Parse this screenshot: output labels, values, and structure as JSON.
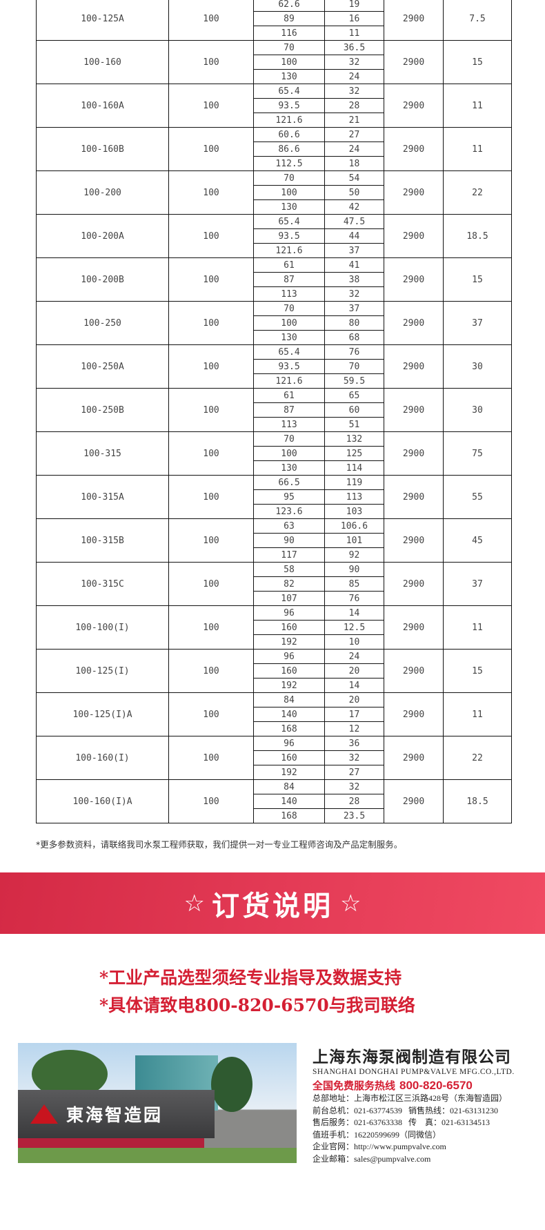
{
  "table": {
    "rows": [
      {
        "model": "100-125A",
        "inlet": "100",
        "flow": [
          "62.6",
          "89",
          "116"
        ],
        "head": [
          "19",
          "16",
          "11"
        ],
        "speed": "2900",
        "power": "7.5"
      },
      {
        "model": "100-160",
        "inlet": "100",
        "flow": [
          "70",
          "100",
          "130"
        ],
        "head": [
          "36.5",
          "32",
          "24"
        ],
        "speed": "2900",
        "power": "15"
      },
      {
        "model": "100-160A",
        "inlet": "100",
        "flow": [
          "65.4",
          "93.5",
          "121.6"
        ],
        "head": [
          "32",
          "28",
          "21"
        ],
        "speed": "2900",
        "power": "11"
      },
      {
        "model": "100-160B",
        "inlet": "100",
        "flow": [
          "60.6",
          "86.6",
          "112.5"
        ],
        "head": [
          "27",
          "24",
          "18"
        ],
        "speed": "2900",
        "power": "11"
      },
      {
        "model": "100-200",
        "inlet": "100",
        "flow": [
          "70",
          "100",
          "130"
        ],
        "head": [
          "54",
          "50",
          "42"
        ],
        "speed": "2900",
        "power": "22"
      },
      {
        "model": "100-200A",
        "inlet": "100",
        "flow": [
          "65.4",
          "93.5",
          "121.6"
        ],
        "head": [
          "47.5",
          "44",
          "37"
        ],
        "speed": "2900",
        "power": "18.5"
      },
      {
        "model": "100-200B",
        "inlet": "100",
        "flow": [
          "61",
          "87",
          "113"
        ],
        "head": [
          "41",
          "38",
          "32"
        ],
        "speed": "2900",
        "power": "15"
      },
      {
        "model": "100-250",
        "inlet": "100",
        "flow": [
          "70",
          "100",
          "130"
        ],
        "head": [
          "37",
          "80",
          "68"
        ],
        "speed": "2900",
        "power": "37"
      },
      {
        "model": "100-250A",
        "inlet": "100",
        "flow": [
          "65.4",
          "93.5",
          "121.6"
        ],
        "head": [
          "76",
          "70",
          "59.5"
        ],
        "speed": "2900",
        "power": "30"
      },
      {
        "model": "100-250B",
        "inlet": "100",
        "flow": [
          "61",
          "87",
          "113"
        ],
        "head": [
          "65",
          "60",
          "51"
        ],
        "speed": "2900",
        "power": "30"
      },
      {
        "model": "100-315",
        "inlet": "100",
        "flow": [
          "70",
          "100",
          "130"
        ],
        "head": [
          "132",
          "125",
          "114"
        ],
        "speed": "2900",
        "power": "75"
      },
      {
        "model": "100-315A",
        "inlet": "100",
        "flow": [
          "66.5",
          "95",
          "123.6"
        ],
        "head": [
          "119",
          "113",
          "103"
        ],
        "speed": "2900",
        "power": "55"
      },
      {
        "model": "100-315B",
        "inlet": "100",
        "flow": [
          "63",
          "90",
          "117"
        ],
        "head": [
          "106.6",
          "101",
          "92"
        ],
        "speed": "2900",
        "power": "45"
      },
      {
        "model": "100-315C",
        "inlet": "100",
        "flow": [
          "58",
          "82",
          "107"
        ],
        "head": [
          "90",
          "85",
          "76"
        ],
        "speed": "2900",
        "power": "37"
      },
      {
        "model": "100-100(I)",
        "inlet": "100",
        "flow": [
          "96",
          "160",
          "192"
        ],
        "head": [
          "14",
          "12.5",
          "10"
        ],
        "speed": "2900",
        "power": "11"
      },
      {
        "model": "100-125(I)",
        "inlet": "100",
        "flow": [
          "96",
          "160",
          "192"
        ],
        "head": [
          "24",
          "20",
          "14"
        ],
        "speed": "2900",
        "power": "15"
      },
      {
        "model": "100-125(I)A",
        "inlet": "100",
        "flow": [
          "84",
          "140",
          "168"
        ],
        "head": [
          "20",
          "17",
          "12"
        ],
        "speed": "2900",
        "power": "11"
      },
      {
        "model": "100-160(I)",
        "inlet": "100",
        "flow": [
          "96",
          "160",
          "192"
        ],
        "head": [
          "36",
          "32",
          "27"
        ],
        "speed": "2900",
        "power": "22"
      },
      {
        "model": "100-160(I)A",
        "inlet": "100",
        "flow": [
          "84",
          "140",
          "168"
        ],
        "head": [
          "32",
          "28",
          "23.5"
        ],
        "speed": "2900",
        "power": "18.5"
      }
    ]
  },
  "note": "*更多参数资料，请联络我司水泵工程师获取，我们提供一对一专业工程师咨询及产品定制服务。",
  "banner": {
    "star": "☆",
    "title": "订货说明"
  },
  "order_lines": [
    "*工业产品选型须经专业指导及数据支持",
    "*具体请致电800-820-6570与我司联络"
  ],
  "photo": {
    "sign_text": "東海智造园"
  },
  "company": {
    "name_cn": "上海东海泵阀制造有限公司",
    "name_en": "SHANGHAI DONGHAI PUMP&VALVE MFG.CO.,LTD.",
    "hotline_label": "全国免费服务热线",
    "hotline": "800-820-6570",
    "lines": [
      "总部地址：上海市松江区三浜路428号（东海智造园）",
      "前台总机：021-63774539   销售热线：021-63131230",
      "售后服务：021-63763338   传    真：021-63134513",
      "值班手机：16220599699（同微信）",
      "企业官网：http://www.pumpvalve.com",
      "企业邮箱：sales@pumpvalve.com"
    ]
  },
  "colors": {
    "accent": "#d41f33",
    "band": "#e33a55"
  }
}
